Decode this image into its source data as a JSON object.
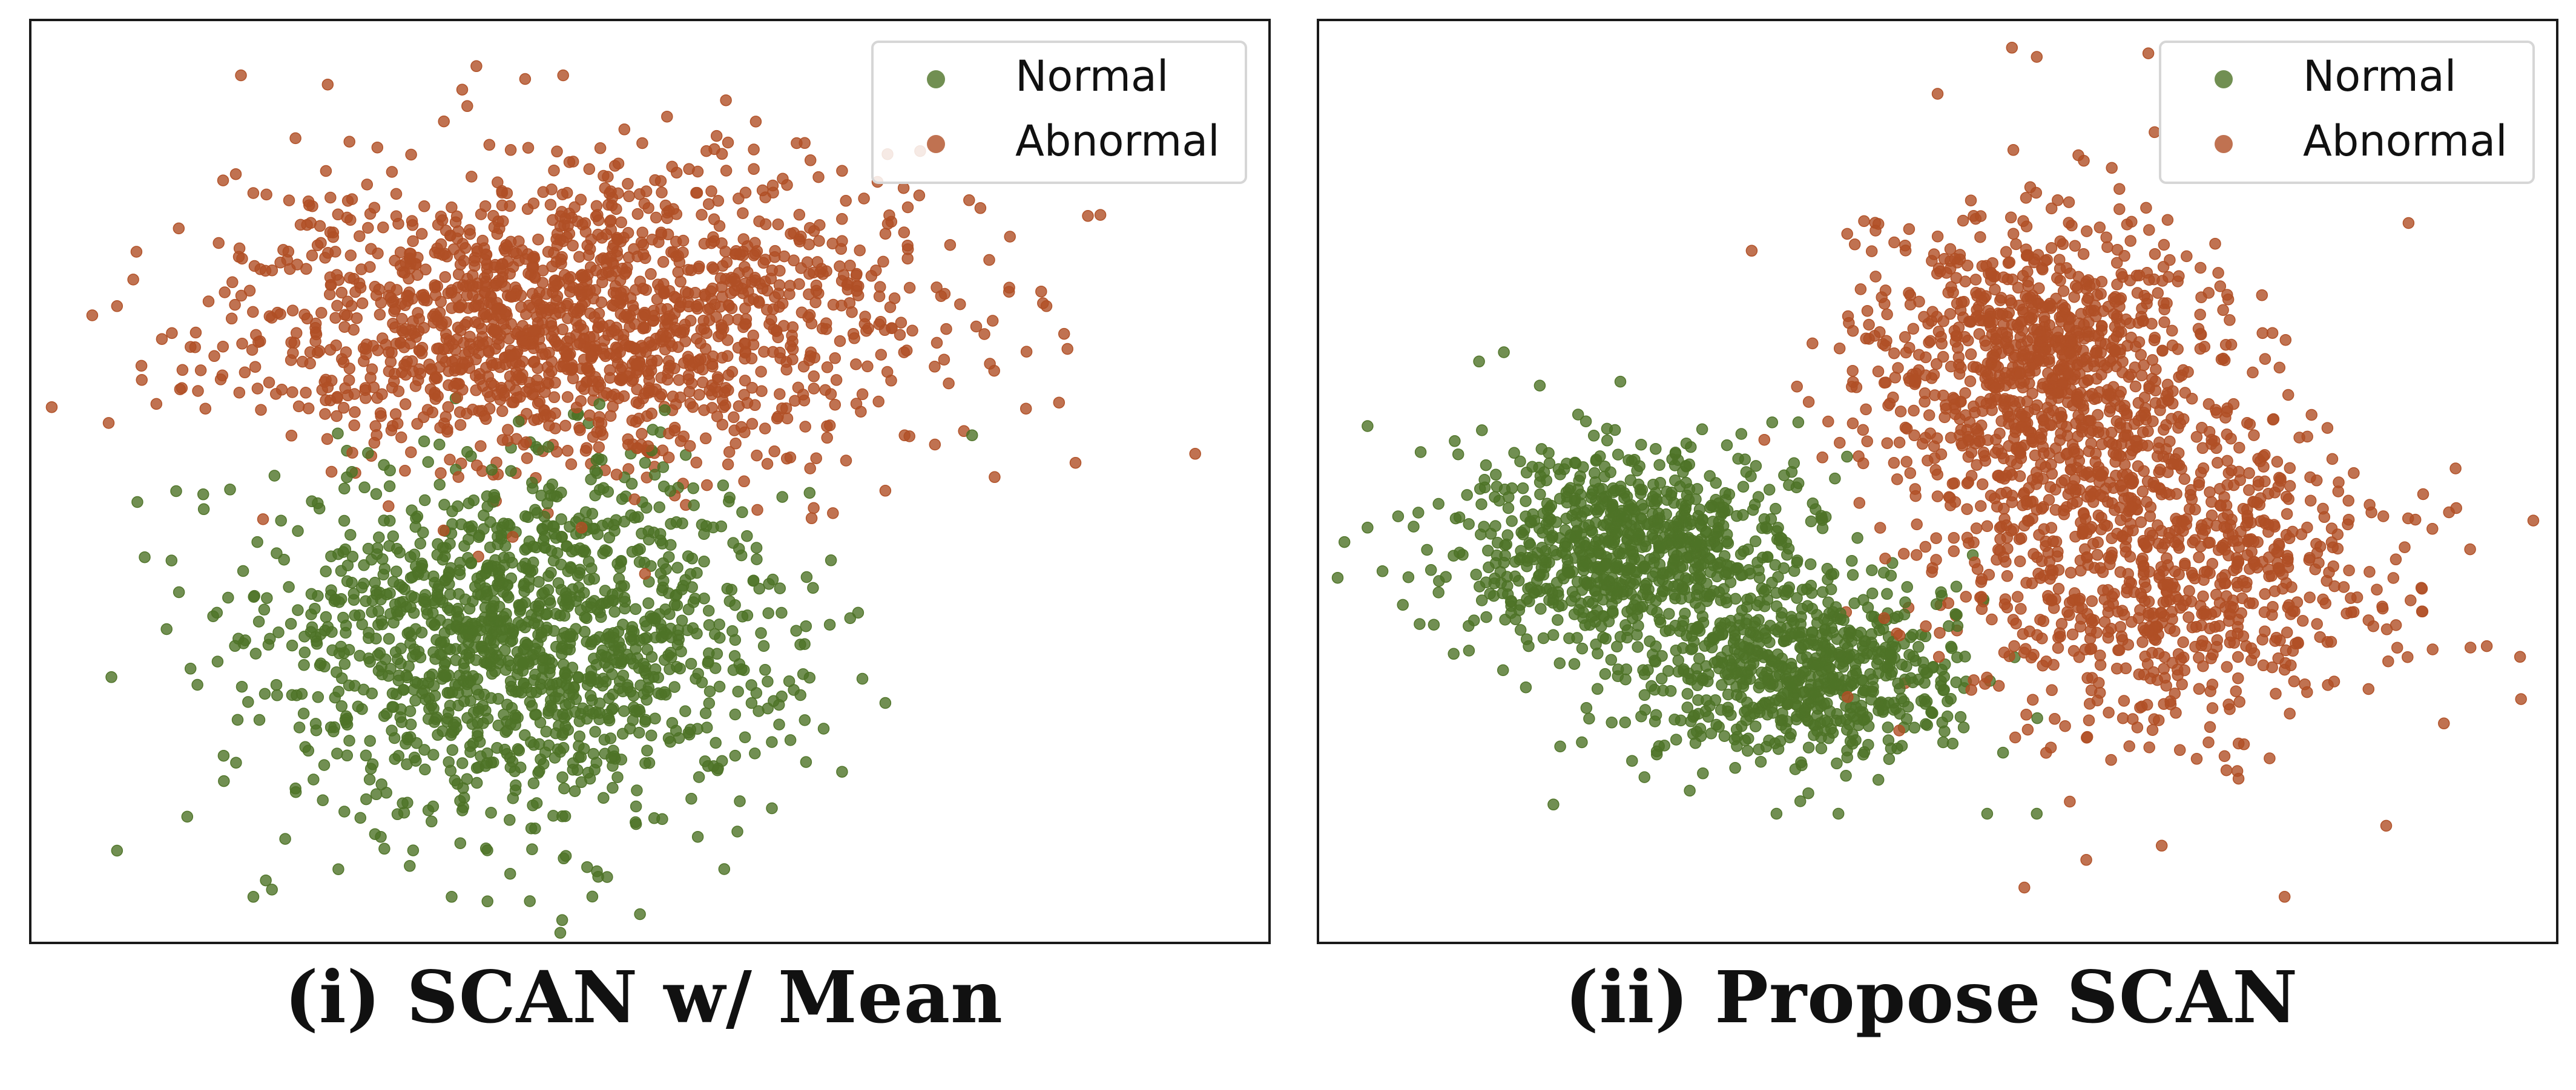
{
  "colors": {
    "normal": "#4e7327",
    "abnormal": "#b04f25",
    "frame": "#1a1a1a",
    "legend_border": "#d6d6d6"
  },
  "chart_data": [
    {
      "type": "scatter",
      "title": "(i) SCAN w/ Mean",
      "xlabel": "",
      "ylabel": "",
      "axis_ticks": "none",
      "grid": false,
      "legend": "top-right",
      "xlim": [
        0,
        100
      ],
      "ylim": [
        0,
        100
      ],
      "series": [
        {
          "name": "Normal",
          "color": "#4e7327",
          "clusters": [
            {
              "cx": 40,
              "cy": 33,
              "sx": 10.5,
              "sy": 9.5,
              "n": 1400
            }
          ],
          "outliers": [
            [
              7,
              10
            ],
            [
              18,
              5
            ],
            [
              34,
              5
            ],
            [
              56,
              8
            ],
            [
              69,
              26
            ],
            [
              12,
              38
            ],
            [
              14,
              47
            ],
            [
              76,
              55
            ],
            [
              11,
              34
            ]
          ]
        },
        {
          "name": "Abnormal",
          "color": "#b04f25",
          "clusters": [
            {
              "cx": 44,
              "cy": 67.5,
              "sx": 13.5,
              "sy": 8,
              "n": 1650
            }
          ],
          "outliers": [
            [
              5,
              68
            ],
            [
              7,
              69
            ],
            [
              17,
              94
            ],
            [
              24,
              93
            ],
            [
              36,
              95
            ],
            [
              43,
              94
            ],
            [
              79,
              71
            ],
            [
              82,
              69
            ],
            [
              94,
              53
            ],
            [
              69,
              49
            ],
            [
              73,
              54
            ],
            [
              9,
              61
            ]
          ]
        }
      ]
    },
    {
      "type": "scatter",
      "title": "(ii) Propose SCAN",
      "xlabel": "",
      "ylabel": "",
      "axis_ticks": "none",
      "grid": false,
      "legend": "top-right",
      "xlim": [
        0,
        100
      ],
      "ylim": [
        0,
        100
      ],
      "series": [
        {
          "name": "Normal",
          "color": "#4e7327",
          "clusters": [
            {
              "cx": 25,
              "cy": 43,
              "sx": 6.8,
              "sy": 5.5,
              "n": 830
            },
            {
              "cx": 39,
              "cy": 29,
              "sx": 6.5,
              "sy": 5,
              "n": 680
            }
          ],
          "outliers": [
            [
              4,
              56
            ],
            [
              15,
              64
            ],
            [
              4,
              45
            ],
            [
              19,
              15
            ],
            [
              37,
              14
            ],
            [
              42,
              14
            ],
            [
              54,
              14
            ],
            [
              58,
              14
            ],
            [
              13,
              63
            ]
          ]
        },
        {
          "name": "Abnormal",
          "color": "#b04f25",
          "clusters": [
            {
              "cx": 58,
              "cy": 63,
              "sx": 7,
              "sy": 8,
              "n": 1000
            },
            {
              "cx": 68,
              "cy": 40,
              "sx": 9,
              "sy": 9,
              "n": 850
            }
          ],
          "outliers": [
            [
              56,
              97
            ],
            [
              50,
              92
            ],
            [
              35,
              75
            ],
            [
              97,
              31
            ],
            [
              93,
              32
            ],
            [
              57,
              6
            ],
            [
              62,
              9
            ],
            [
              78,
              5
            ],
            [
              58,
              96
            ],
            [
              88,
              78
            ]
          ]
        }
      ]
    }
  ]
}
